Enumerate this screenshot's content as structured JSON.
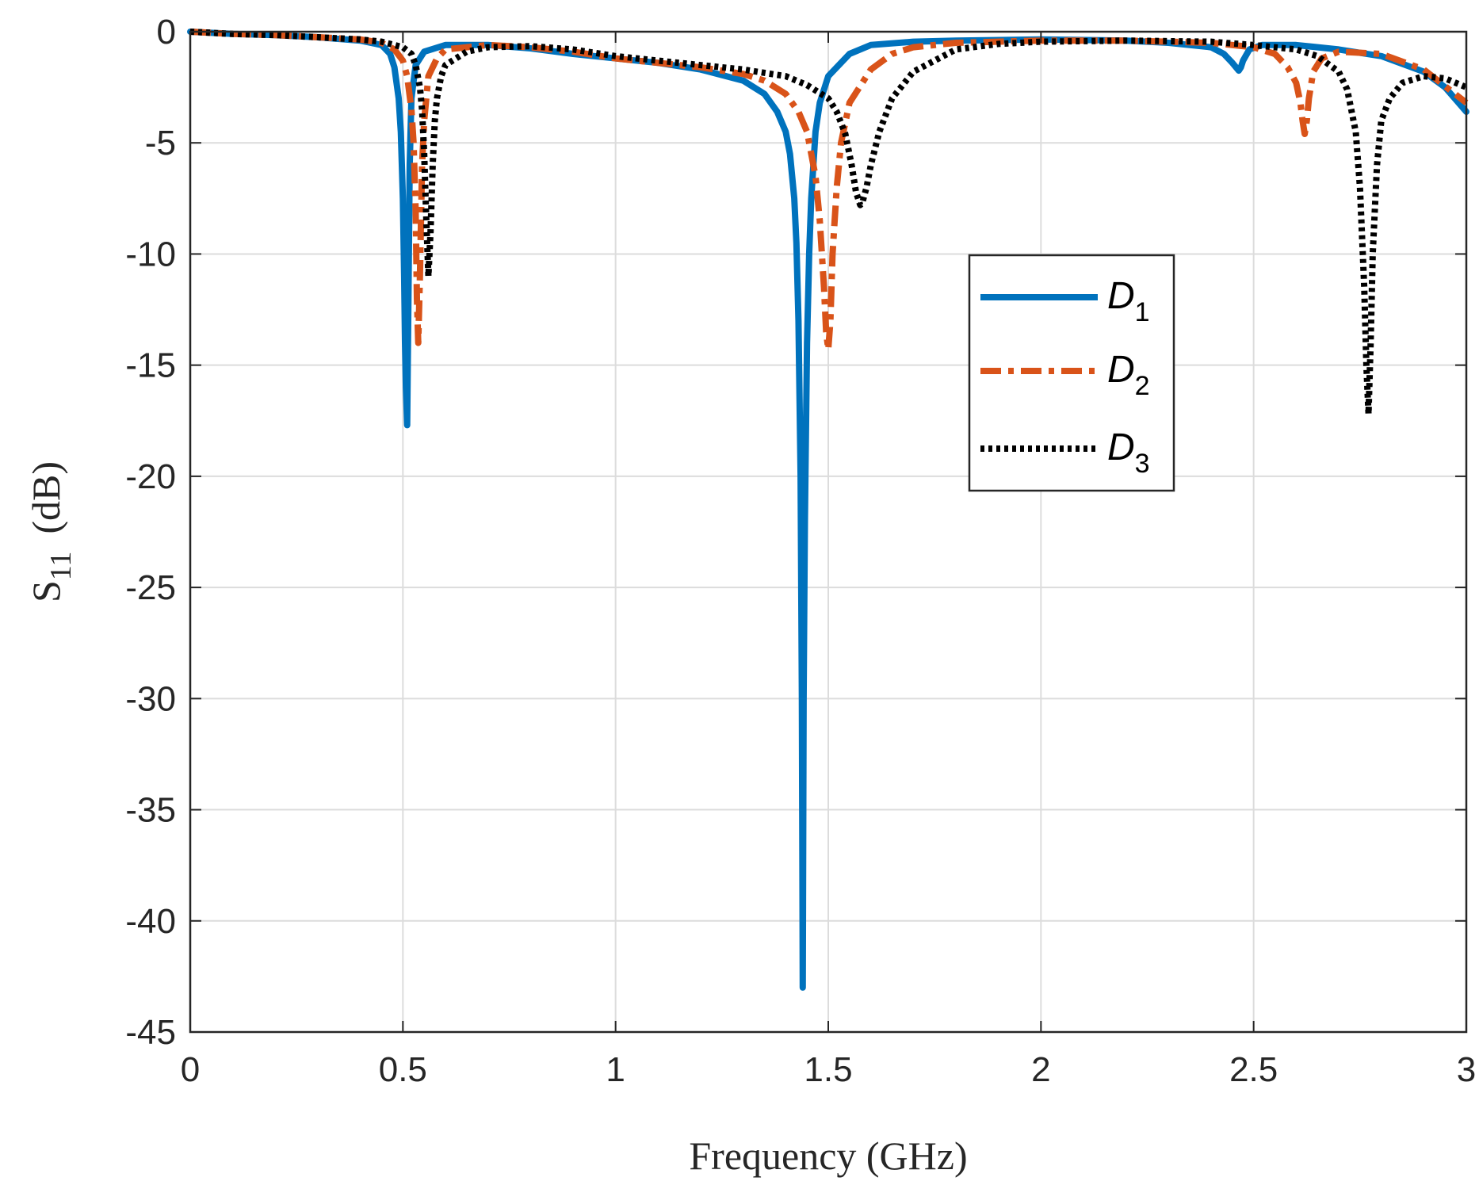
{
  "chart_data": {
    "type": "line",
    "title": "",
    "xlabel": "Frequency (GHz)",
    "ylabel_main": "S",
    "ylabel_sub": "11",
    "ylabel_unit": "(dB)",
    "xlim": [
      0,
      3
    ],
    "ylim": [
      -45,
      0
    ],
    "xticks": [
      0,
      0.5,
      1,
      1.5,
      2,
      2.5,
      3
    ],
    "xtick_labels": [
      "0",
      "0.5",
      "1",
      "1.5",
      "2",
      "2.5",
      "3"
    ],
    "yticks": [
      0,
      -5,
      -10,
      -15,
      -20,
      -25,
      -30,
      -35,
      -40,
      -45
    ],
    "ytick_labels": [
      "0",
      "-5",
      "-10",
      "-15",
      "-20",
      "-25",
      "-30",
      "-35",
      "-40",
      "-45"
    ],
    "grid": true,
    "legend_position": "upper-right-inside",
    "series": [
      {
        "name": "D1",
        "name_main": "D",
        "name_sub": "1",
        "color": "#0072bd",
        "style": "solid",
        "x": [
          0,
          0.1,
          0.2,
          0.3,
          0.4,
          0.45,
          0.47,
          0.48,
          0.49,
          0.495,
          0.5,
          0.503,
          0.505,
          0.507,
          0.51,
          0.513,
          0.516,
          0.52,
          0.53,
          0.55,
          0.6,
          0.7,
          0.8,
          0.9,
          1.0,
          1.1,
          1.2,
          1.3,
          1.35,
          1.38,
          1.4,
          1.41,
          1.42,
          1.425,
          1.43,
          1.435,
          1.438,
          1.44,
          1.442,
          1.445,
          1.45,
          1.455,
          1.46,
          1.47,
          1.48,
          1.5,
          1.55,
          1.6,
          1.7,
          1.8,
          2.0,
          2.2,
          2.3,
          2.4,
          2.43,
          2.45,
          2.465,
          2.47,
          2.475,
          2.49,
          2.52,
          2.6,
          2.7,
          2.8,
          2.9,
          2.95,
          3.0
        ],
        "y": [
          0,
          -0.1,
          -0.15,
          -0.25,
          -0.4,
          -0.6,
          -1.0,
          -1.6,
          -3.0,
          -4.5,
          -7.5,
          -11.0,
          -14.0,
          -16.0,
          -17.7,
          -12.0,
          -6.0,
          -3.0,
          -1.5,
          -0.9,
          -0.6,
          -0.6,
          -0.75,
          -1.0,
          -1.2,
          -1.4,
          -1.7,
          -2.2,
          -2.8,
          -3.6,
          -4.5,
          -5.5,
          -7.5,
          -9.5,
          -13.0,
          -20.0,
          -30.0,
          -43.0,
          -30.0,
          -22.0,
          -14.0,
          -10.0,
          -7.5,
          -4.5,
          -3.2,
          -2.0,
          -1.0,
          -0.6,
          -0.45,
          -0.4,
          -0.35,
          -0.4,
          -0.5,
          -0.7,
          -1.0,
          -1.4,
          -1.75,
          -1.6,
          -1.3,
          -0.8,
          -0.6,
          -0.6,
          -0.8,
          -1.1,
          -1.8,
          -2.5,
          -3.6
        ]
      },
      {
        "name": "D2",
        "name_main": "D",
        "name_sub": "2",
        "color": "#d95319",
        "style": "dash-dot",
        "x": [
          0,
          0.1,
          0.2,
          0.3,
          0.4,
          0.45,
          0.48,
          0.5,
          0.51,
          0.52,
          0.525,
          0.53,
          0.533,
          0.536,
          0.54,
          0.545,
          0.55,
          0.56,
          0.58,
          0.6,
          0.7,
          0.8,
          0.9,
          1.0,
          1.1,
          1.2,
          1.3,
          1.35,
          1.4,
          1.43,
          1.45,
          1.47,
          1.48,
          1.49,
          1.495,
          1.5,
          1.505,
          1.51,
          1.52,
          1.53,
          1.55,
          1.6,
          1.65,
          1.7,
          1.8,
          2.0,
          2.2,
          2.4,
          2.5,
          2.55,
          2.58,
          2.6,
          2.61,
          2.615,
          2.62,
          2.625,
          2.63,
          2.64,
          2.66,
          2.7,
          2.8,
          2.9,
          3.0
        ],
        "y": [
          0,
          -0.1,
          -0.15,
          -0.25,
          -0.35,
          -0.5,
          -0.8,
          -1.3,
          -2.0,
          -3.5,
          -5.0,
          -8.0,
          -12.0,
          -14.0,
          -11.0,
          -6.0,
          -4.0,
          -2.0,
          -1.2,
          -0.8,
          -0.6,
          -0.7,
          -0.9,
          -1.2,
          -1.4,
          -1.6,
          -1.9,
          -2.2,
          -2.8,
          -3.6,
          -4.5,
          -6.5,
          -8.5,
          -11.5,
          -13.5,
          -14.3,
          -13.0,
          -10.0,
          -7.0,
          -5.0,
          -3.2,
          -1.7,
          -1.0,
          -0.7,
          -0.5,
          -0.4,
          -0.4,
          -0.5,
          -0.7,
          -1.0,
          -1.6,
          -2.3,
          -3.2,
          -4.0,
          -4.6,
          -4.0,
          -3.0,
          -1.8,
          -1.2,
          -0.9,
          -1.0,
          -1.7,
          -3.2
        ]
      },
      {
        "name": "D3",
        "name_main": "D",
        "name_sub": "3",
        "color": "#000000",
        "style": "dotted",
        "x": [
          0,
          0.1,
          0.2,
          0.3,
          0.4,
          0.45,
          0.5,
          0.52,
          0.53,
          0.54,
          0.545,
          0.55,
          0.555,
          0.56,
          0.565,
          0.57,
          0.575,
          0.58,
          0.59,
          0.6,
          0.65,
          0.7,
          0.8,
          0.9,
          1.0,
          1.1,
          1.2,
          1.3,
          1.4,
          1.45,
          1.5,
          1.52,
          1.54,
          1.555,
          1.565,
          1.575,
          1.58,
          1.59,
          1.6,
          1.62,
          1.65,
          1.7,
          1.8,
          1.9,
          2.0,
          2.2,
          2.4,
          2.5,
          2.6,
          2.65,
          2.7,
          2.72,
          2.74,
          2.75,
          2.76,
          2.765,
          2.77,
          2.775,
          2.78,
          2.79,
          2.8,
          2.82,
          2.85,
          2.9,
          2.95,
          3.0
        ],
        "y": [
          0,
          -0.1,
          -0.15,
          -0.25,
          -0.35,
          -0.45,
          -0.7,
          -1.0,
          -1.5,
          -2.5,
          -3.5,
          -5.5,
          -8.5,
          -11.0,
          -9.0,
          -6.0,
          -4.0,
          -3.0,
          -2.0,
          -1.5,
          -0.9,
          -0.7,
          -0.65,
          -0.8,
          -1.1,
          -1.3,
          -1.5,
          -1.7,
          -2.0,
          -2.4,
          -3.0,
          -3.6,
          -4.6,
          -6.0,
          -7.2,
          -7.8,
          -7.7,
          -7.0,
          -6.0,
          -4.5,
          -3.0,
          -1.8,
          -0.8,
          -0.55,
          -0.45,
          -0.4,
          -0.45,
          -0.6,
          -0.8,
          -1.1,
          -1.8,
          -2.6,
          -4.5,
          -7.0,
          -11.5,
          -15.0,
          -17.2,
          -14.0,
          -10.0,
          -6.0,
          -4.0,
          -3.0,
          -2.3,
          -2.0,
          -2.1,
          -2.5
        ]
      }
    ]
  }
}
